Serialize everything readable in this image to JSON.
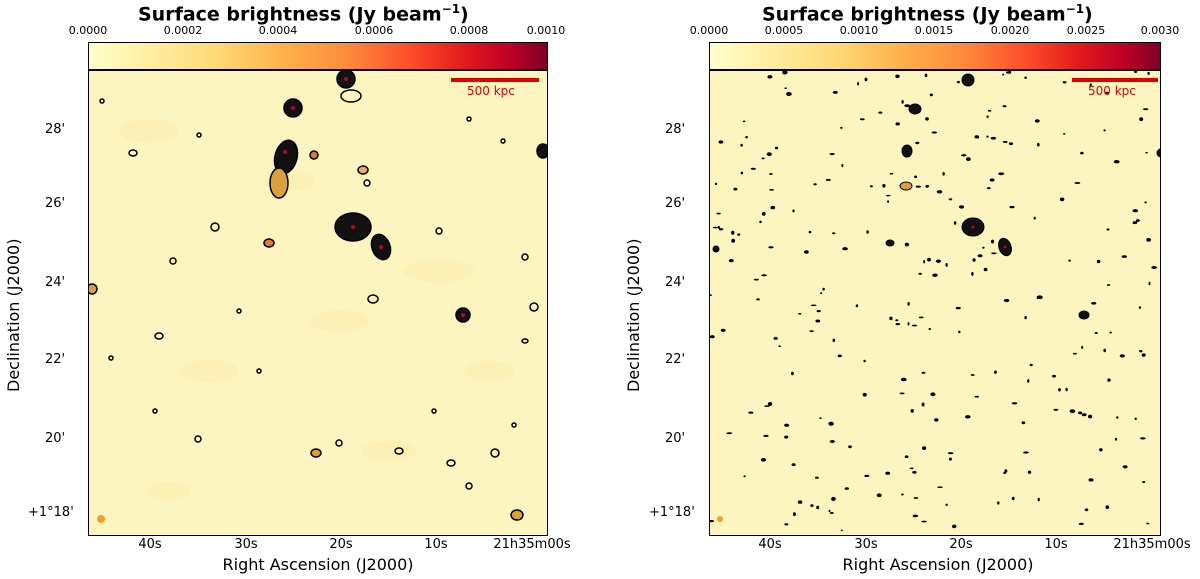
{
  "panels": [
    {
      "colorbar": {
        "title_main": "Surface brightness (Jy beam",
        "title_sup": "−1",
        "title_end": ")",
        "ticks": [
          "0.0000",
          "0.0002",
          "0.0004",
          "0.0006",
          "0.0008",
          "0.0010"
        ]
      },
      "axes": {
        "xlabel": "Right Ascension (J2000)",
        "ylabel": "Declination (J2000)",
        "xticks": [
          "40s",
          "30s",
          "20s",
          "10s",
          "21h35m00s"
        ],
        "yticks": [
          "28'",
          "26'",
          "24'",
          "22'",
          "20'",
          "+1°18'"
        ]
      },
      "scalebar": "500 kpc"
    },
    {
      "colorbar": {
        "title_main": "Surface brightness (Jy beam",
        "title_sup": "−1",
        "title_end": ")",
        "ticks": [
          "0.0000",
          "0.0005",
          "0.0010",
          "0.0015",
          "0.0020",
          "0.0025",
          "0.0030"
        ]
      },
      "axes": {
        "xlabel": "Right Ascension (J2000)",
        "ylabel": "Declination (J2000)",
        "xticks": [
          "40s",
          "30s",
          "20s",
          "10s",
          "21h35m00s"
        ],
        "yticks": [
          "28'",
          "26'",
          "24'",
          "22'",
          "20'",
          "+1°18'"
        ]
      },
      "scalebar": "500 kpc"
    }
  ],
  "colors": {
    "background_map": "#fdf5c0",
    "contour": "#000000",
    "scalebar": "#e00000"
  }
}
